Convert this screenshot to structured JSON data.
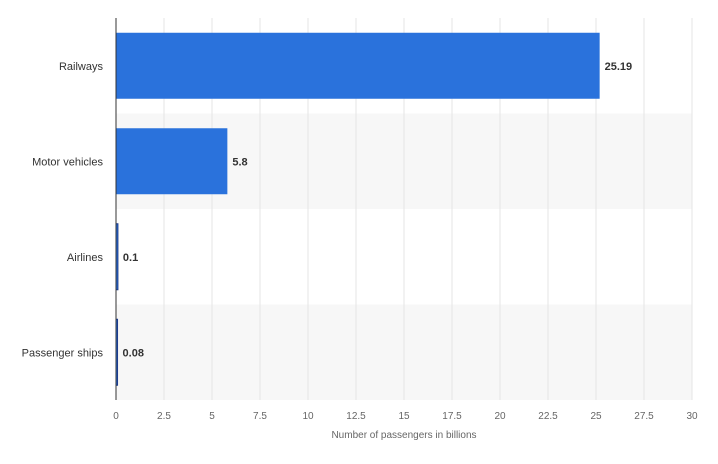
{
  "chart_data": {
    "type": "bar",
    "orientation": "horizontal",
    "categories": [
      "Railways",
      "Motor vehicles",
      "Airlines",
      "Passenger ships"
    ],
    "values": [
      25.19,
      5.8,
      0.1,
      0.08
    ],
    "value_labels": [
      "25.19",
      "5.8",
      "0.1",
      "0.08"
    ],
    "xlabel": "Number of passengers in billions",
    "ylabel": "",
    "xlim": [
      0,
      30
    ],
    "xticks": [
      0,
      2.5,
      5,
      7.5,
      10,
      12.5,
      15,
      17.5,
      20,
      22.5,
      25,
      27.5,
      30
    ],
    "xtick_labels": [
      "0",
      "2.5",
      "5",
      "7.5",
      "10",
      "12.5",
      "15",
      "17.5",
      "20",
      "22.5",
      "25",
      "27.5",
      "30"
    ],
    "grid": true,
    "band_shading": "alternating",
    "colors": {
      "bar": "#2a72dc",
      "bar_edge": "#1b3a8c",
      "grid": "#e6e6e6",
      "band": "#f7f7f7",
      "axis": "#333333"
    }
  }
}
